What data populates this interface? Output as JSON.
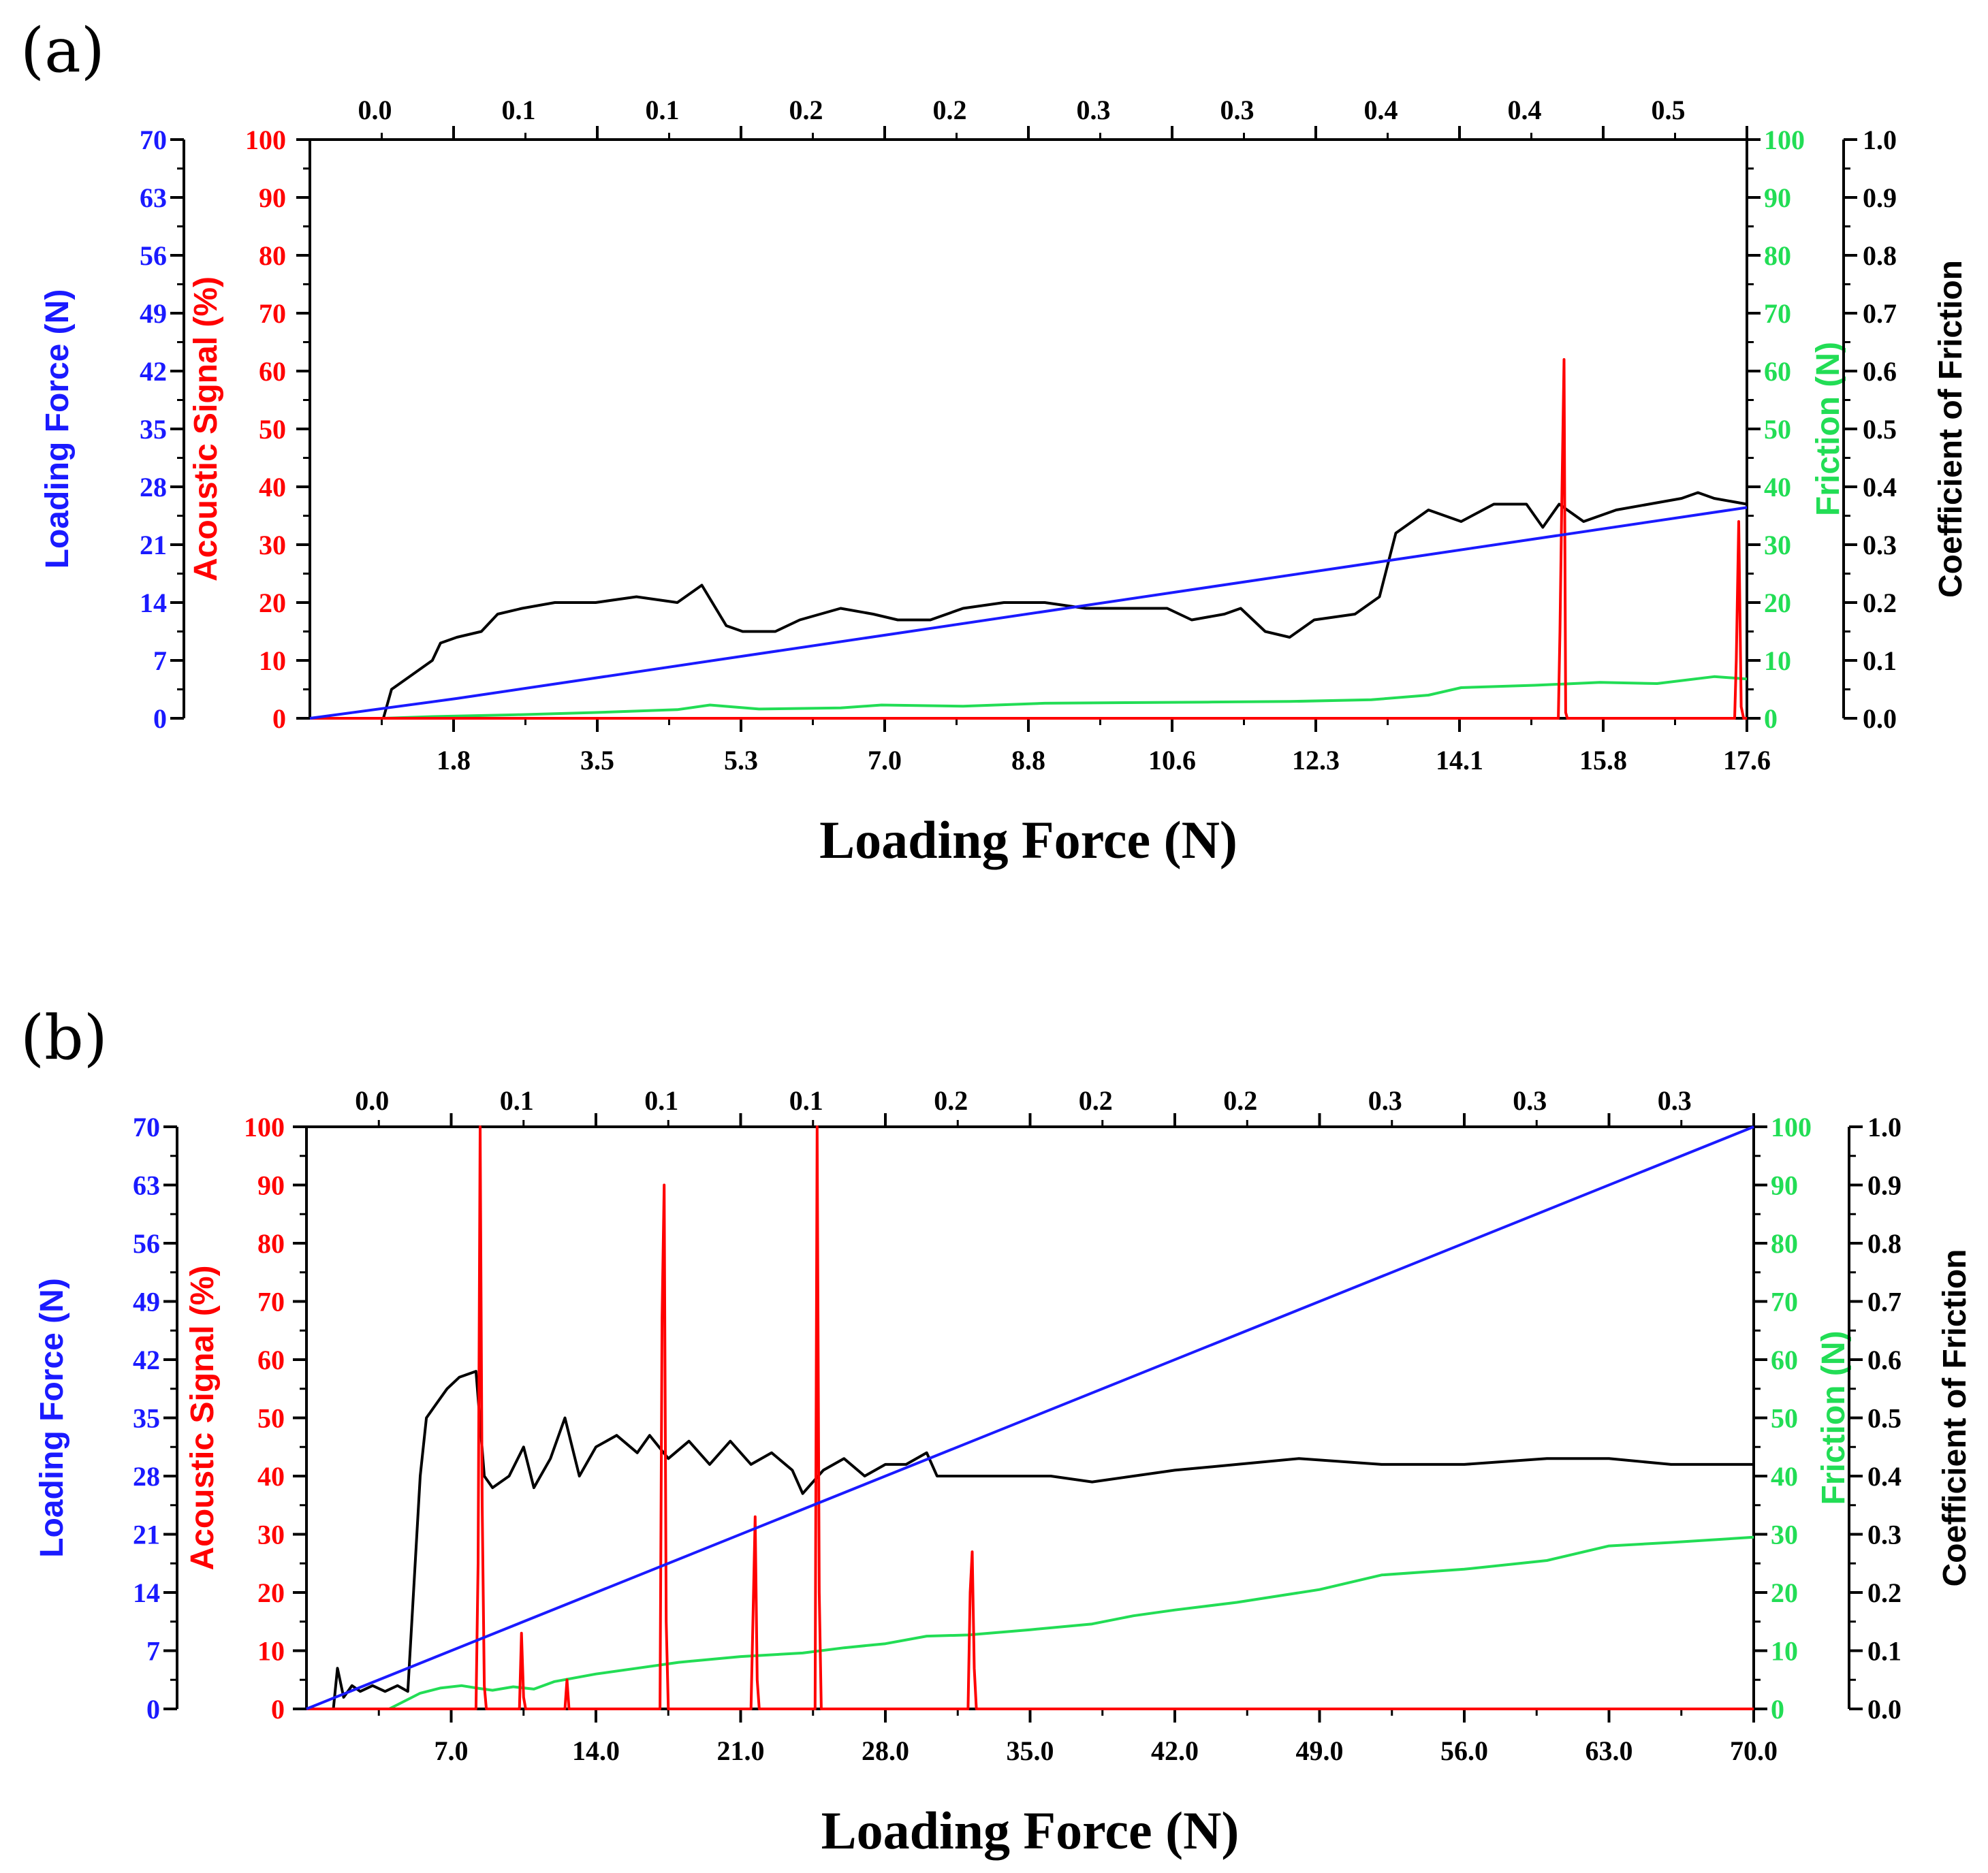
{
  "colors": {
    "loading_force": "#1a1aff",
    "acoustic": "#ff0000",
    "friction": "#22dd55",
    "cof": "#000000",
    "axis": "#000000"
  },
  "chart_data": [
    {
      "panel": "(a)",
      "type": "line",
      "xlabel": "Loading Force  (N)",
      "x_ticks": [
        "1.8",
        "3.5",
        "5.3",
        "7.0",
        "8.8",
        "10.6",
        "12.3",
        "14.1",
        "15.8",
        "17.6"
      ],
      "xlim": [
        0,
        17.6
      ],
      "top_ticks": [
        "0.0",
        "0.1",
        "0.1",
        "0.2",
        "0.2",
        "0.3",
        "0.3",
        "0.4",
        "0.4",
        "0.5"
      ],
      "axes": {
        "loading_force": {
          "label": "Loading Force (N)",
          "ticks": [
            "70",
            "63",
            "56",
            "49",
            "42",
            "35",
            "28",
            "21",
            "14",
            "7",
            "0"
          ],
          "range": [
            0,
            70
          ]
        },
        "acoustic": {
          "label": "Acoustic Signal (%)",
          "ticks": [
            "100",
            "90",
            "80",
            "70",
            "60",
            "50",
            "40",
            "30",
            "20",
            "10",
            "0"
          ],
          "range": [
            0,
            100
          ]
        },
        "friction": {
          "label": "Friction (N)",
          "ticks": [
            "100",
            "90",
            "80",
            "70",
            "60",
            "50",
            "40",
            "30",
            "20",
            "10",
            "0"
          ],
          "range": [
            0,
            100
          ]
        },
        "cof": {
          "label": "Coefficient of Friction",
          "ticks": [
            "1.0",
            "0.9",
            "0.8",
            "0.7",
            "0.6",
            "0.5",
            "0.4",
            "0.3",
            "0.2",
            "0.1",
            "0.0"
          ],
          "range": [
            0,
            1
          ]
        }
      },
      "series": [
        {
          "name": "Loading Force",
          "axis": "loading_force",
          "x": [
            0,
            1.8,
            17.6
          ],
          "y": [
            0,
            2.4,
            25.5
          ]
        },
        {
          "name": "Coefficient of Friction",
          "axis": "cof",
          "x": [
            0,
            0.9,
            1.0,
            1.2,
            1.5,
            1.6,
            1.8,
            2.1,
            2.3,
            2.6,
            3.0,
            3.5,
            4.0,
            4.5,
            4.8,
            5.1,
            5.3,
            5.7,
            6.0,
            6.5,
            6.9,
            7.2,
            7.6,
            8.0,
            8.5,
            9.0,
            9.5,
            10.0,
            10.5,
            10.8,
            11.2,
            11.4,
            11.7,
            12.0,
            12.3,
            12.8,
            13.1,
            13.3,
            13.7,
            14.1,
            14.5,
            14.9,
            15.1,
            15.3,
            15.6,
            16.0,
            16.4,
            16.8,
            17.0,
            17.2,
            17.6
          ],
          "y": [
            0,
            0,
            0.05,
            0.07,
            0.1,
            0.13,
            0.14,
            0.15,
            0.18,
            0.19,
            0.2,
            0.2,
            0.21,
            0.2,
            0.23,
            0.16,
            0.15,
            0.15,
            0.17,
            0.19,
            0.18,
            0.17,
            0.17,
            0.19,
            0.2,
            0.2,
            0.19,
            0.19,
            0.19,
            0.17,
            0.18,
            0.19,
            0.15,
            0.14,
            0.17,
            0.18,
            0.21,
            0.32,
            0.36,
            0.34,
            0.37,
            0.37,
            0.33,
            0.37,
            0.34,
            0.36,
            0.37,
            0.38,
            0.39,
            0.38,
            0.37
          ]
        },
        {
          "name": "Friction",
          "axis": "friction",
          "x": [
            0,
            0.9,
            1.5,
            2.5,
            3.5,
            4.5,
            4.9,
            5.5,
            6.5,
            7.0,
            8.0,
            9.0,
            10.0,
            11.0,
            12.0,
            13.0,
            13.7,
            14.1,
            15.0,
            15.8,
            16.5,
            17.2,
            17.6
          ],
          "y": [
            0,
            0,
            0.3,
            0.6,
            1.0,
            1.5,
            2.3,
            1.6,
            1.8,
            2.3,
            2.1,
            2.6,
            2.7,
            2.8,
            2.9,
            3.2,
            4.0,
            5.3,
            5.7,
            6.2,
            6.0,
            7.2,
            6.8
          ]
        },
        {
          "name": "Acoustic Signal",
          "axis": "acoustic",
          "x": [
            0,
            15.29,
            15.31,
            15.33,
            15.36,
            15.38,
            15.4,
            17.45,
            17.47,
            17.5,
            17.53,
            17.56,
            17.6
          ],
          "y": [
            0,
            0,
            15,
            35,
            62,
            1,
            0,
            0,
            10,
            34,
            2,
            0,
            0
          ]
        }
      ]
    },
    {
      "panel": "(b)",
      "type": "line",
      "xlabel": "Loading Force (N)",
      "x_ticks": [
        "7.0",
        "14.0",
        "21.0",
        "28.0",
        "35.0",
        "42.0",
        "49.0",
        "56.0",
        "63.0",
        "70.0"
      ],
      "xlim": [
        0,
        70
      ],
      "top_ticks": [
        "0.0",
        "0.1",
        "0.1",
        "0.1",
        "0.2",
        "0.2",
        "0.2",
        "0.3",
        "0.3",
        "0.3"
      ],
      "axes": {
        "loading_force": {
          "label": "Loading Force (N)",
          "ticks": [
            "70",
            "63",
            "56",
            "49",
            "42",
            "35",
            "28",
            "21",
            "14",
            "7",
            "0"
          ],
          "range": [
            0,
            70
          ]
        },
        "acoustic": {
          "label": "Acoustic Signal (%)",
          "ticks": [
            "100",
            "90",
            "80",
            "70",
            "60",
            "50",
            "40",
            "30",
            "20",
            "10",
            "0"
          ],
          "range": [
            0,
            100
          ]
        },
        "friction": {
          "label": "Friction (N)",
          "ticks": [
            "100",
            "90",
            "80",
            "70",
            "60",
            "50",
            "40",
            "30",
            "20",
            "10",
            "0"
          ],
          "range": [
            0,
            100
          ]
        },
        "cof": {
          "label": "Coefficient of Friction",
          "ticks": [
            "1.0",
            "0.9",
            "0.8",
            "0.7",
            "0.6",
            "0.5",
            "0.4",
            "0.3",
            "0.2",
            "0.1",
            "0.0"
          ],
          "range": [
            0,
            1
          ]
        }
      },
      "series": [
        {
          "name": "Loading Force",
          "axis": "loading_force",
          "x": [
            0,
            70
          ],
          "y": [
            0,
            70
          ]
        },
        {
          "name": "Coefficient of Friction",
          "axis": "cof",
          "x": [
            0,
            1.3,
            1.5,
            1.8,
            2.2,
            2.6,
            3.2,
            3.8,
            4.4,
            4.9,
            5.5,
            5.8,
            6.2,
            6.8,
            7.4,
            8.2,
            8.6,
            9.0,
            9.8,
            10.5,
            11.0,
            11.8,
            12.5,
            13.2,
            14.0,
            15.0,
            16.0,
            16.6,
            17.5,
            18.5,
            19.5,
            20.5,
            21.5,
            22.5,
            23.5,
            24.0,
            25.0,
            26.0,
            27.0,
            28.0,
            29.0,
            30.0,
            30.5,
            32.0,
            34.0,
            36.0,
            38.0,
            40.0,
            42.0,
            45.0,
            48.0,
            52.0,
            56.0,
            60.0,
            63.0,
            66.0,
            70.0
          ],
          "y": [
            0,
            0,
            0.07,
            0.02,
            0.04,
            0.03,
            0.04,
            0.03,
            0.04,
            0.03,
            0.4,
            0.5,
            0.52,
            0.55,
            0.57,
            0.58,
            0.4,
            0.38,
            0.4,
            0.45,
            0.38,
            0.43,
            0.5,
            0.4,
            0.45,
            0.47,
            0.44,
            0.47,
            0.43,
            0.46,
            0.42,
            0.46,
            0.42,
            0.44,
            0.41,
            0.37,
            0.41,
            0.43,
            0.4,
            0.42,
            0.42,
            0.44,
            0.4,
            0.4,
            0.4,
            0.4,
            0.39,
            0.4,
            0.41,
            0.42,
            0.43,
            0.42,
            0.42,
            0.43,
            0.43,
            0.42,
            0.42
          ]
        },
        {
          "name": "Friction",
          "axis": "friction",
          "x": [
            0,
            4.0,
            5.5,
            6.5,
            7.5,
            8.4,
            9.0,
            10.0,
            11.0,
            12.0,
            14.0,
            16.0,
            18.0,
            21.0,
            24.0,
            26.0,
            28.0,
            30.0,
            32.0,
            35.0,
            38.0,
            40.0,
            42.0,
            45.0,
            49.0,
            52.0,
            56.0,
            60.0,
            63.0,
            66.0,
            70.0
          ],
          "y": [
            0,
            0,
            2.7,
            3.6,
            4.0,
            3.5,
            3.2,
            3.8,
            3.4,
            4.7,
            6.0,
            7.0,
            8.0,
            9.0,
            9.6,
            10.5,
            11.2,
            12.5,
            12.7,
            13.6,
            14.6,
            16.0,
            17.0,
            18.3,
            20.5,
            23.0,
            24.0,
            25.5,
            28.0,
            28.6,
            29.5
          ]
        },
        {
          "name": "Acoustic Signal",
          "axis": "acoustic",
          "x": [
            0,
            8.2,
            8.3,
            8.4,
            8.5,
            8.6,
            8.7,
            10.3,
            10.4,
            10.5,
            10.6,
            12.5,
            12.6,
            12.7,
            17.1,
            17.2,
            17.3,
            17.4,
            17.5,
            21.5,
            21.6,
            21.7,
            21.8,
            21.9,
            24.6,
            24.7,
            24.8,
            24.9,
            32.0,
            32.1,
            32.2,
            32.3,
            32.4,
            70.0
          ],
          "y": [
            0,
            0,
            25,
            100,
            35,
            4,
            0,
            0,
            13,
            2,
            0,
            0,
            5,
            0,
            0,
            67,
            90,
            15,
            0,
            0,
            16,
            33,
            5,
            0,
            0,
            100,
            20,
            0,
            0,
            20,
            27,
            7,
            0,
            0
          ]
        }
      ]
    }
  ]
}
